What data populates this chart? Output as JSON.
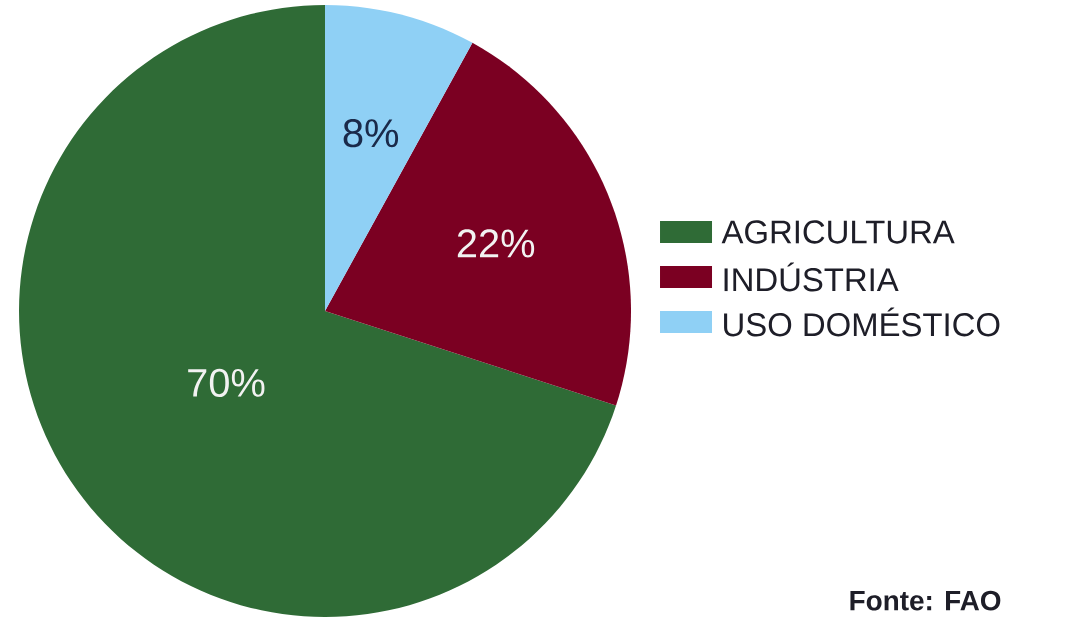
{
  "chart_data": {
    "type": "pie",
    "categories": [
      "AGRICULTURA",
      "INDÚSTRIA",
      "USO DOMÉSTICO"
    ],
    "values": [
      70,
      22,
      8
    ],
    "colors": [
      "#2f6b36",
      "#7b0022",
      "#8fd0f5"
    ],
    "value_labels": [
      "70%",
      "22%",
      "8%"
    ],
    "legend": "right",
    "annotations": [
      "Fonte: FAO"
    ]
  }
}
